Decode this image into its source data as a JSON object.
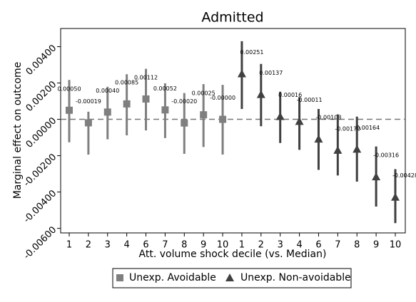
{
  "chart_data": {
    "type": "coefplot",
    "title": "Admitted",
    "x_label": "Att. volume shock decile (vs. Median)",
    "y_label": "Marginal effect on outcome",
    "categories": [
      "1",
      "2",
      "3",
      "4",
      "6",
      "7",
      "8",
      "9",
      "10",
      "1",
      "2",
      "3",
      "4",
      "6",
      "7",
      "8",
      "9",
      "10"
    ],
    "ylim": [
      -0.00625,
      0.005
    ],
    "yticks": [
      {
        "value": 0.004,
        "label": "0.00400"
      },
      {
        "value": 0.002,
        "label": "0.00200"
      },
      {
        "value": 0,
        "label": "0.00000"
      },
      {
        "value": -0.002,
        "label": "-0.00200"
      },
      {
        "value": -0.004,
        "label": "-0.00400"
      },
      {
        "value": -0.006,
        "label": "-0.00600"
      }
    ],
    "hline": 0,
    "legend": "bottom",
    "series": [
      {
        "name": "Unexp. Avoidable",
        "color": "#7f7f7f",
        "marker": "square",
        "values": [
          0.0005,
          -0.00019,
          0.0004,
          0.00085,
          0.00112,
          0.00052,
          -0.0002,
          0.00025,
          0,
          null,
          null,
          null,
          null,
          null,
          null,
          null,
          null,
          null
        ],
        "value_labels": [
          "0.00050",
          "-0.00019",
          "0.00040",
          "0.00085",
          "0.00112",
          "0.00052",
          "-0.00020",
          "0.00025",
          "-0.00000",
          null,
          null,
          null,
          null,
          null,
          null,
          null,
          null,
          null
        ],
        "lower": [
          -0.00126,
          -0.00194,
          -0.0011,
          -0.00088,
          -0.00061,
          -0.00103,
          -0.0019,
          -0.00152,
          -0.00194,
          null,
          null,
          null,
          null,
          null,
          null,
          null,
          null,
          null
        ],
        "upper": [
          0.00217,
          0.00042,
          0.00179,
          0.00248,
          0.00278,
          0.00198,
          0.00145,
          0.00194,
          0.0019,
          null,
          null,
          null,
          null,
          null,
          null,
          null,
          null,
          null
        ]
      },
      {
        "name": "Unexp. Non-avoidable",
        "color": "#404040",
        "marker": "triangle",
        "values": [
          null,
          null,
          null,
          null,
          null,
          null,
          null,
          null,
          null,
          0.00251,
          0.00137,
          0.00016,
          -0.00011,
          -0.00108,
          -0.0017,
          -0.00164,
          -0.00316,
          -0.00428
        ],
        "value_labels": [
          null,
          null,
          null,
          null,
          null,
          null,
          null,
          null,
          null,
          "0.00251",
          "0.00137",
          "0.00016",
          "-0.00011",
          "-0.00108",
          "-0.00170",
          "-0.00164",
          "-0.00316",
          "-0.00428"
        ],
        "lower": [
          null,
          null,
          null,
          null,
          null,
          null,
          null,
          null,
          null,
          0.00057,
          -0.00038,
          -0.0013,
          -0.00168,
          -0.00278,
          -0.00309,
          -0.00343,
          -0.0048,
          -0.00571
        ],
        "upper": [
          null,
          null,
          null,
          null,
          null,
          null,
          null,
          null,
          null,
          0.0043,
          0.00305,
          0.00152,
          0.00122,
          0.00057,
          0.00027,
          0.00015,
          -0.00149,
          -0.00274
        ]
      }
    ]
  }
}
